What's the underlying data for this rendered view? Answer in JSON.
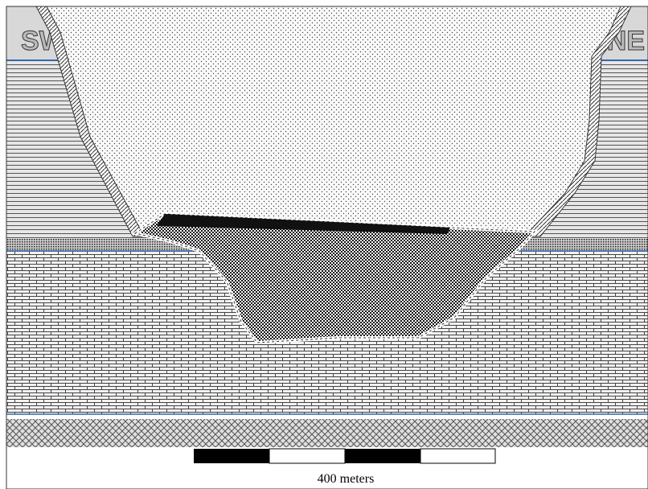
{
  "labels": {
    "left": "SW",
    "right": "NE"
  },
  "scale": {
    "label": "400 meters"
  }
}
